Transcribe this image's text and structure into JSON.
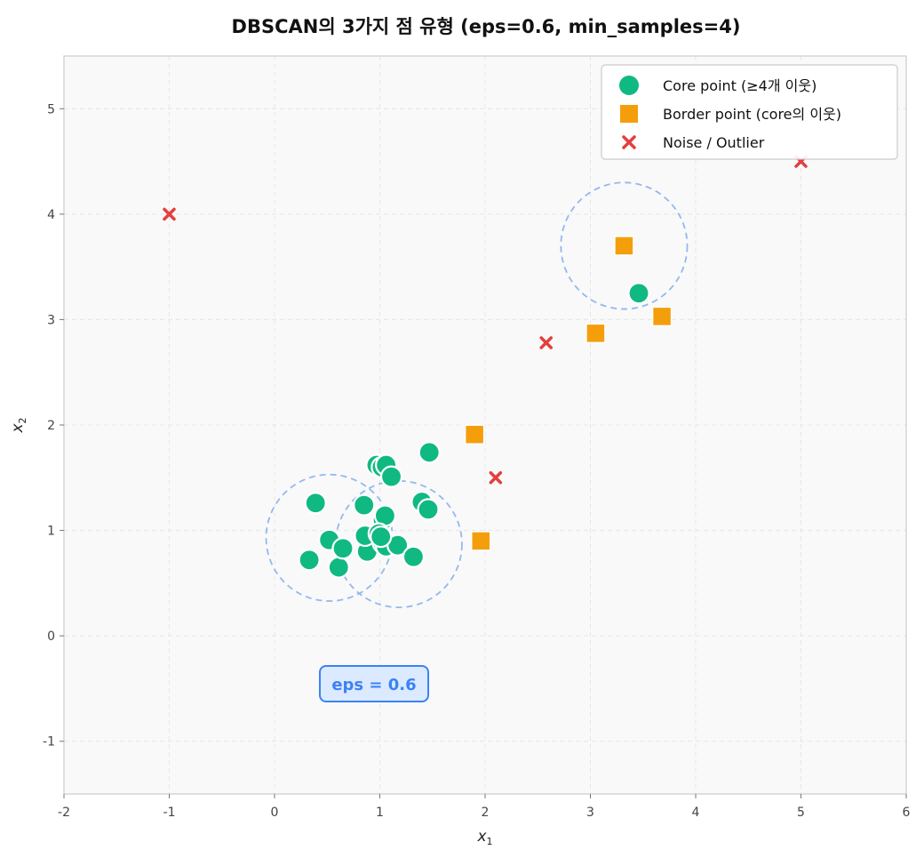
{
  "chart_data": {
    "type": "scatter",
    "title": "DBSCAN의 3가지 점 유형 (eps=0.6, min_samples=4)",
    "xlabel": "x",
    "xlabel_sub": "1",
    "ylabel": "x",
    "ylabel_sub": "2",
    "xlim": [
      -2,
      6
    ],
    "ylim": [
      -1.5,
      5.5
    ],
    "xticks": [
      "-2",
      "-1",
      "0",
      "1",
      "2",
      "3",
      "4",
      "5",
      "6"
    ],
    "yticks": [
      "-1",
      "0",
      "1",
      "2",
      "3",
      "4",
      "5"
    ],
    "grid": true,
    "legend_position": "top-right",
    "series": [
      {
        "name": "Core point (≥4개 이웃)",
        "marker": "circle",
        "color": "#10b981",
        "x": [
          0.97,
          1.02,
          1.06,
          1.11,
          1.47,
          0.39,
          0.85,
          1.4,
          1.46,
          1.03,
          1.05,
          0.52,
          0.88,
          1.03,
          1.06,
          1.17,
          1.32,
          0.33,
          0.61,
          0.65,
          0.86,
          0.99,
          1.01,
          3.46
        ],
        "y": [
          1.62,
          1.6,
          1.62,
          1.51,
          1.74,
          1.26,
          1.24,
          1.27,
          1.2,
          1.1,
          1.14,
          0.91,
          0.8,
          0.88,
          0.85,
          0.86,
          0.75,
          0.72,
          0.65,
          0.83,
          0.95,
          0.97,
          0.94,
          3.25
        ]
      },
      {
        "name": "Border point (core의 이웃)",
        "marker": "square",
        "color": "#f59e0b",
        "x": [
          3.32,
          3.68,
          3.05,
          1.9,
          1.96
        ],
        "y": [
          3.7,
          3.03,
          2.87,
          1.91,
          0.9
        ]
      },
      {
        "name": "Noise / Outlier",
        "marker": "x",
        "color": "#e53e3e",
        "x": [
          -1.0,
          5.0,
          2.58,
          2.1
        ],
        "y": [
          4.0,
          4.5,
          2.78,
          1.5
        ]
      }
    ],
    "eps_circles": [
      {
        "cx": 0.52,
        "cy": 0.93,
        "r": 0.6
      },
      {
        "cx": 1.18,
        "cy": 0.87,
        "r": 0.6
      },
      {
        "cx": 3.32,
        "cy": 3.7,
        "r": 0.6
      }
    ],
    "annotation": {
      "text": "eps = 0.6",
      "x": 0.95,
      "y": -0.47,
      "color": "#3b82f6",
      "background": "#dbeafe"
    },
    "colors": {
      "plot_background": "#f9f9f9",
      "grid": "#e6e6e6",
      "eps_circle": "#93b8ef"
    }
  }
}
